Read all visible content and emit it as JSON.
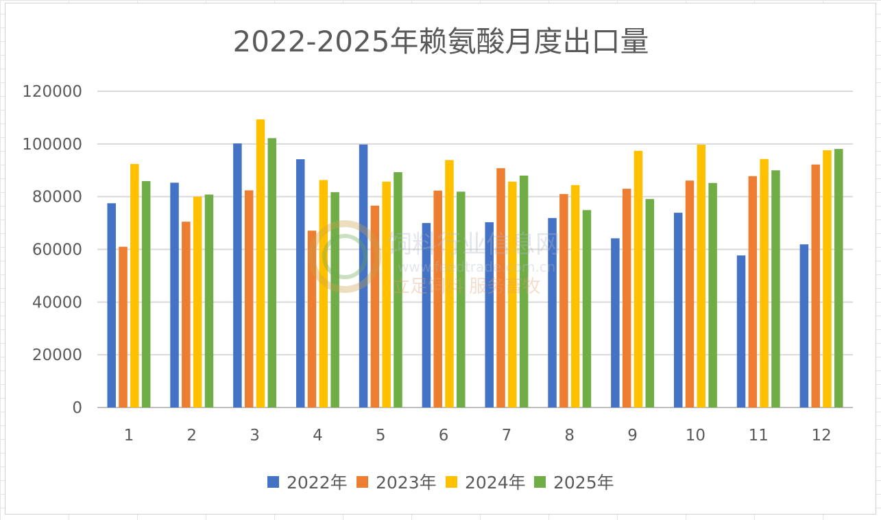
{
  "chart_data": {
    "type": "bar",
    "title": "2022-2025年赖氨酸月度出口量",
    "xlabel": "",
    "ylabel": "",
    "ylim": [
      0,
      120000
    ],
    "yticks": [
      0,
      20000,
      40000,
      60000,
      80000,
      100000,
      120000
    ],
    "grid": true,
    "legend_position": "bottom",
    "categories": [
      "1",
      "2",
      "3",
      "4",
      "5",
      "6",
      "7",
      "8",
      "9",
      "10",
      "11",
      "12"
    ],
    "series": [
      {
        "name": "2022年",
        "color": "#4472C4",
        "values": [
          77500,
          85300,
          100200,
          94200,
          99800,
          70000,
          70300,
          71900,
          64200,
          73900,
          57700,
          61900
        ]
      },
      {
        "name": "2023年",
        "color": "#ED7D31",
        "values": [
          61000,
          70500,
          82400,
          67100,
          76600,
          82300,
          90800,
          81000,
          83000,
          86100,
          87800,
          92200
        ]
      },
      {
        "name": "2024年",
        "color": "#FFC000",
        "values": [
          92400,
          80000,
          109300,
          86300,
          85700,
          93900,
          85700,
          84400,
          97400,
          99700,
          94300,
          97600
        ]
      },
      {
        "name": "2025年",
        "color": "#70AD47",
        "values": [
          85900,
          80800,
          102200,
          81700,
          89300,
          81900,
          88000,
          74900,
          79100,
          85200,
          90000,
          98100
        ]
      }
    ]
  },
  "watermark": {
    "name_text": "饲料行业信息网",
    "url_text": "www.feedtrade.com.cn",
    "slogan_text": "立足饲料  服务畜牧"
  }
}
